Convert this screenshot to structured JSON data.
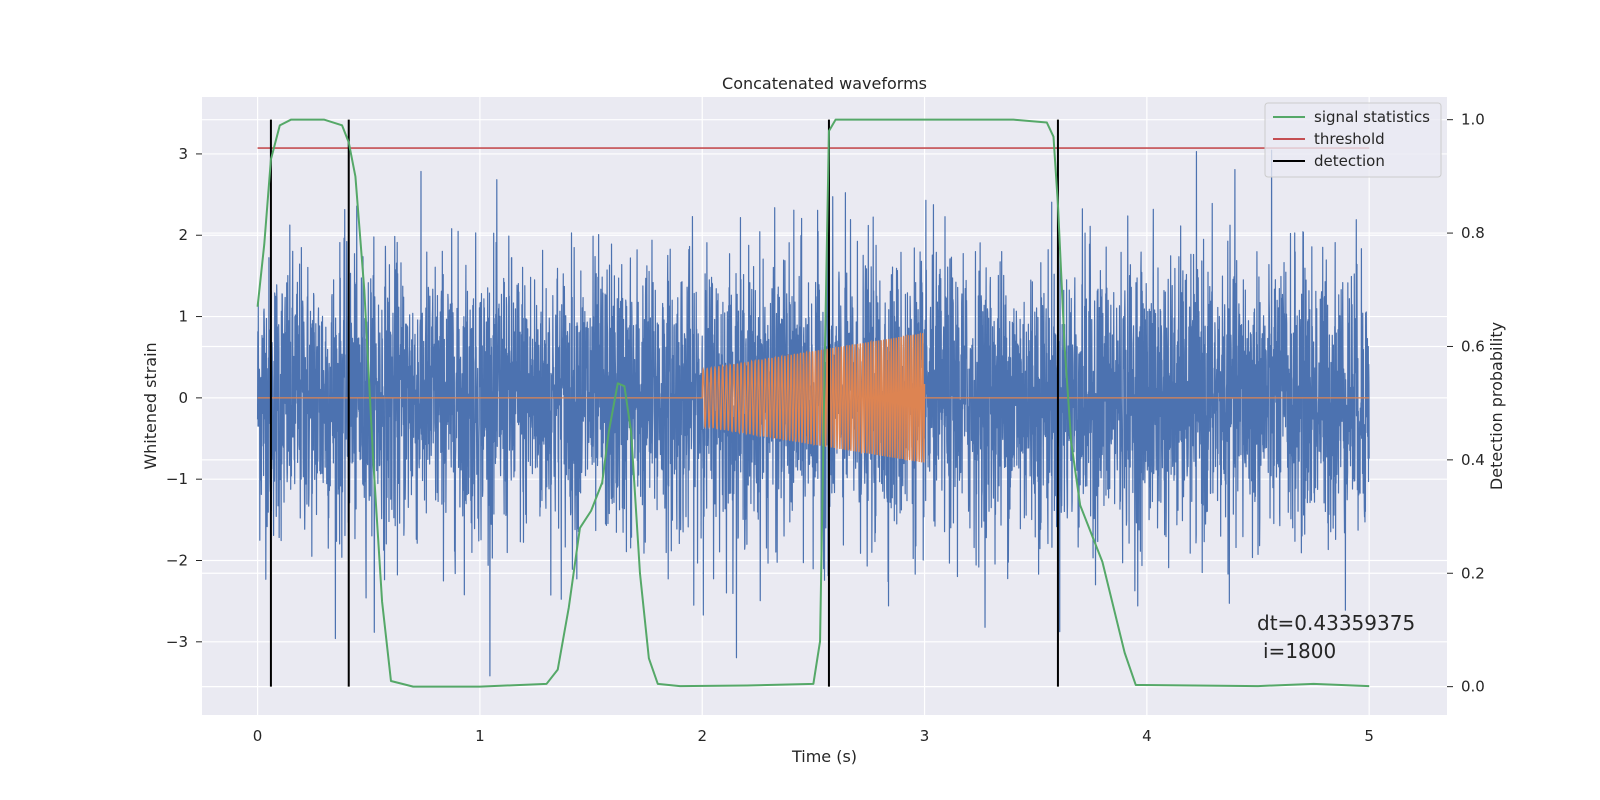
{
  "chart_data": {
    "type": "line",
    "title": "Concatenated waveforms",
    "xlabel": "Time (s)",
    "ylabel_left": "Whitened strain",
    "ylabel_right": "Detection probability",
    "xlim": [
      -0.25,
      5.35
    ],
    "ylim_left": [
      -3.9,
      3.7
    ],
    "ylim_right": [
      -0.05,
      1.04
    ],
    "xticks": [
      0,
      1,
      2,
      3,
      4,
      5
    ],
    "yticks_left": [
      -3,
      -2,
      -1,
      0,
      1,
      2,
      3
    ],
    "yticks_right": [
      0.0,
      0.2,
      0.4,
      0.6,
      0.8,
      1.0
    ],
    "grid": true,
    "legend_position": "top-right",
    "colors": {
      "strain": "#4c72b0",
      "injection": "#dd8452",
      "statistics": "#55a868",
      "threshold": "#c44e52",
      "detection": "#000000",
      "background": "#eaeaf2",
      "grid": "#ffffff"
    },
    "series": [
      {
        "name": "",
        "role": "whitened strain (noise)",
        "x_range": [
          0,
          5
        ],
        "amplitude_envelope": 3.5,
        "axis": "left"
      },
      {
        "name": "",
        "role": "injected chirp waveform",
        "x_range": [
          2,
          3
        ],
        "start_amplitude": 0.35,
        "end_amplitude": 0.8,
        "axis": "left"
      },
      {
        "name": "signal statistics",
        "axis": "right",
        "x": [
          0,
          0.03,
          0.06,
          0.1,
          0.15,
          0.2,
          0.3,
          0.38,
          0.41,
          0.44,
          0.48,
          0.52,
          0.56,
          0.6,
          0.7,
          1.0,
          1.3,
          1.35,
          1.4,
          1.45,
          1.5,
          1.55,
          1.58,
          1.62,
          1.65,
          1.68,
          1.72,
          1.76,
          1.8,
          1.9,
          2.2,
          2.5,
          2.53,
          2.55,
          2.57,
          2.6,
          2.8,
          3.4,
          3.55,
          3.58,
          3.6,
          3.63,
          3.66,
          3.7,
          3.8,
          3.9,
          3.95,
          4.5,
          4.75,
          5.0
        ],
        "values": [
          0.67,
          0.78,
          0.93,
          0.99,
          1.0,
          1.0,
          1.0,
          0.99,
          0.96,
          0.9,
          0.7,
          0.4,
          0.15,
          0.01,
          0.0,
          0.0,
          0.005,
          0.03,
          0.14,
          0.28,
          0.31,
          0.36,
          0.45,
          0.535,
          0.53,
          0.45,
          0.2,
          0.05,
          0.005,
          0.001,
          0.002,
          0.005,
          0.08,
          0.55,
          0.98,
          1.0,
          1.0,
          1.0,
          0.995,
          0.97,
          0.85,
          0.6,
          0.43,
          0.32,
          0.22,
          0.06,
          0.003,
          0.001,
          0.005,
          0.001
        ]
      },
      {
        "name": "threshold",
        "axis": "right",
        "x": [
          0,
          5
        ],
        "values": [
          0.95,
          0.95
        ]
      },
      {
        "name": "detection",
        "axis": "right",
        "x": [
          0.06,
          0.41,
          2.57,
          3.6
        ],
        "range": [
          0.0,
          1.0
        ]
      }
    ],
    "annotations": [
      "dt=0.43359375",
      "i=1800"
    ]
  }
}
